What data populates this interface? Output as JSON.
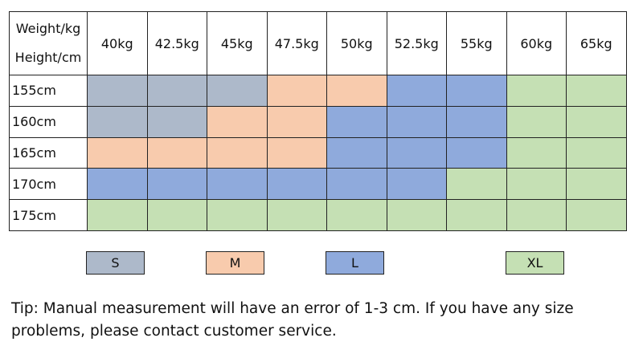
{
  "colors": {
    "S": "#adb9ca",
    "M": "#f8cbad",
    "L": "#8faadc",
    "XL": "#c5e0b4"
  },
  "corner": {
    "weight_label": "Weight/kg",
    "height_label": "Height/cm"
  },
  "chart_data": {
    "type": "table",
    "columns": [
      "40kg",
      "42.5kg",
      "45kg",
      "47.5kg",
      "50kg",
      "52.5kg",
      "55kg",
      "60kg",
      "65kg"
    ],
    "rows": [
      {
        "label": "155cm",
        "sizes": [
          "S",
          "S",
          "S",
          "M",
          "M",
          "L",
          "L",
          "XL",
          "XL"
        ]
      },
      {
        "label": "160cm",
        "sizes": [
          "S",
          "S",
          "M",
          "M",
          "L",
          "L",
          "L",
          "XL",
          "XL"
        ]
      },
      {
        "label": "165cm",
        "sizes": [
          "M",
          "M",
          "M",
          "M",
          "L",
          "L",
          "L",
          "XL",
          "XL"
        ]
      },
      {
        "label": "170cm",
        "sizes": [
          "L",
          "L",
          "L",
          "L",
          "L",
          "L",
          "XL",
          "XL",
          "XL"
        ]
      },
      {
        "label": "175cm",
        "sizes": [
          "XL",
          "XL",
          "XL",
          "XL",
          "XL",
          "XL",
          "XL",
          "XL",
          "XL"
        ]
      }
    ]
  },
  "legend": [
    {
      "size": "S",
      "label": "S"
    },
    {
      "size": "M",
      "label": "M"
    },
    {
      "size": "L",
      "label": "L"
    },
    {
      "size": "XL",
      "label": "XL"
    }
  ],
  "tip": "Tip: Manual measurement will have an error of 1-3 cm. If you have any size problems, please contact customer service."
}
